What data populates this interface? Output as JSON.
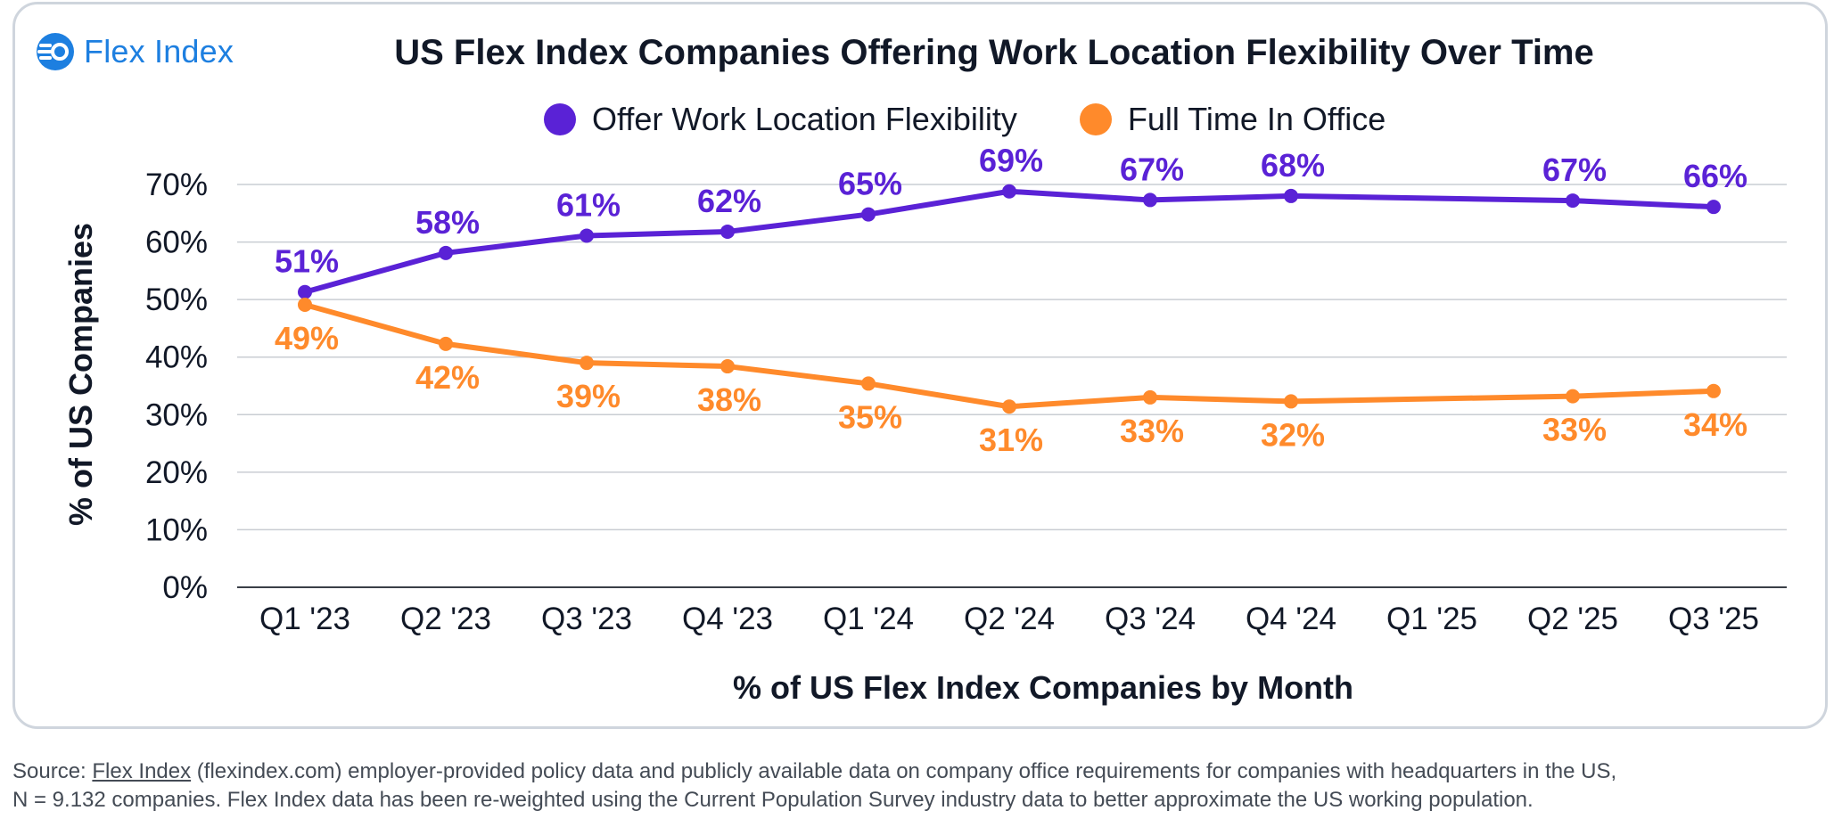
{
  "brand": {
    "logo_text": "Flex Index",
    "logo_color": "#1d7fe0"
  },
  "chart_data": {
    "type": "line",
    "title": "US Flex Index Companies Offering Work Location Flexibility Over Time",
    "xlabel": "% of US Flex Index Companies by Month",
    "ylabel": "% of US Companies",
    "categories": [
      "Q1 '23",
      "Q2 '23",
      "Q3 '23",
      "Q4 '23",
      "Q1 '24",
      "Q2 '24",
      "Q3 '24",
      "Q4 '24",
      "Q1 '25",
      "Q2 '25",
      "Q3 '25"
    ],
    "ylim": [
      0,
      70
    ],
    "yticks": [
      0,
      10,
      20,
      30,
      40,
      50,
      60,
      70
    ],
    "ytick_labels": [
      "0%",
      "10%",
      "20%",
      "30%",
      "40%",
      "50%",
      "60%",
      "70%"
    ],
    "grid": true,
    "legend_position": "top",
    "series": [
      {
        "name": "Offer Work Location Flexibility",
        "color": "#5a22d6",
        "label_position": "above",
        "values": [
          51.3,
          58.1,
          61.1,
          61.8,
          64.8,
          68.8,
          67.3,
          68.0,
          null,
          67.2,
          66.1
        ],
        "labels": [
          "51%",
          "58%",
          "61%",
          "62%",
          "65%",
          "69%",
          "67%",
          "68%",
          null,
          "67%",
          "66%"
        ]
      },
      {
        "name": "Full Time In Office",
        "color": "#ff8a2b",
        "label_position": "below",
        "values": [
          49.1,
          42.3,
          39.0,
          38.4,
          35.4,
          31.4,
          33.0,
          32.3,
          null,
          33.2,
          34.1
        ],
        "labels": [
          "49%",
          "42%",
          "39%",
          "38%",
          "35%",
          "31%",
          "33%",
          "32%",
          null,
          "33%",
          "34%"
        ]
      }
    ]
  },
  "source": {
    "prefix": "Source: ",
    "link_text": "Flex Index",
    "line1_rest": " (flexindex.com) employer-provided policy data and publicly available data on company office requirements for companies with headquarters in the US,",
    "line2": "N = 9.132 companies. Flex Index data has been re-weighted using the Current Population Survey industry data to better approximate the US working population."
  }
}
